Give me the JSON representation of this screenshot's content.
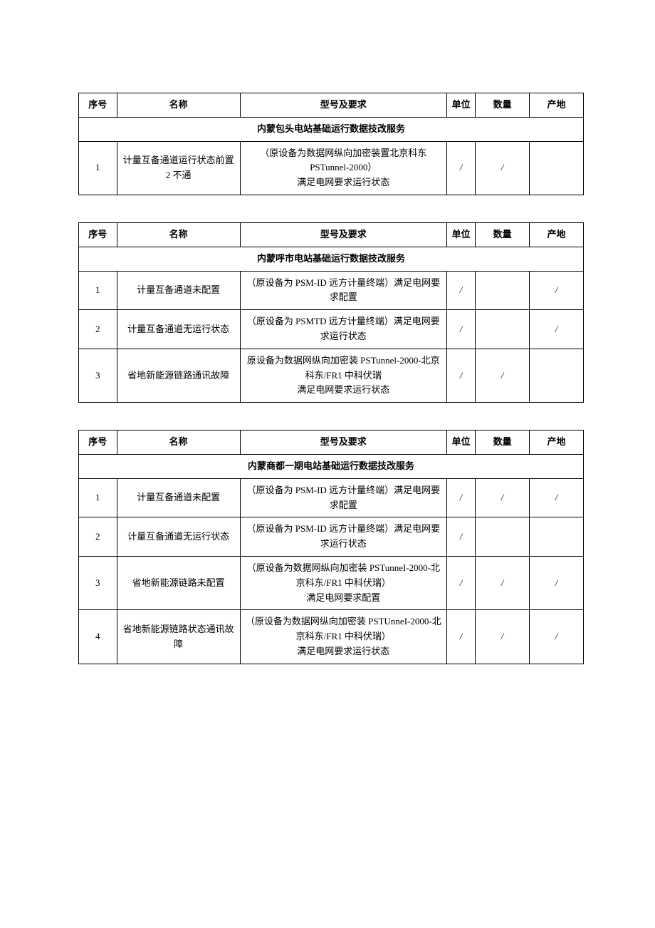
{
  "headers": {
    "seq": "序号",
    "name": "名称",
    "spec": "型号及要求",
    "unit": "单位",
    "qty": "数量",
    "origin": "产地"
  },
  "tables": [
    {
      "section_title": "内蒙包头电站基础运行数据技改服务",
      "rows": [
        {
          "seq": "1",
          "name": "计量互备通道运行状态前置 2 不通",
          "spec": "（原设备为数据网纵向加密装置北京科东 PSTunnel-2000）\n满足电网要求运行状态",
          "unit": "/",
          "qty": "/",
          "origin": ""
        }
      ]
    },
    {
      "section_title": "内蒙呼市电站基础运行数据技改服务",
      "rows": [
        {
          "seq": "1",
          "name": "计量互备通道未配置",
          "spec": "（原设备为 PSM-ID 远方计量终端）满足电网要求配置",
          "unit": "/",
          "qty": "",
          "origin": "/"
        },
        {
          "seq": "2",
          "name": "计量互备通道无运行状态",
          "spec": "（原设备为 PSMTD 远方计量终端）满足电网要求运行状态",
          "unit": "/",
          "qty": "",
          "origin": "/"
        },
        {
          "seq": "3",
          "name": "省地新能源链路通讯故障",
          "spec": "原设备为数据网纵向加密装 PSTunnel-2000-北京科东/FR1 中科伏瑞\n满足电网要求运行状态",
          "unit": "/",
          "qty": "/",
          "origin": ""
        }
      ]
    },
    {
      "section_title": "内蒙商都一期电站基础运行数据技改服务",
      "rows": [
        {
          "seq": "1",
          "name": "计量互备通道未配置",
          "spec": "（原设备为 PSM-ID 远方计量终端）满足电网要求配置",
          "unit": "/",
          "qty": "/",
          "origin": "/"
        },
        {
          "seq": "2",
          "name": "计量互备通道无运行状态",
          "spec": "（原设备为 PSM-ID 远方计量终端）满足电网要求运行状态",
          "unit": "/",
          "qty": "",
          "origin": ""
        },
        {
          "seq": "3",
          "name": "省地新能源链路未配置",
          "spec": "（原设备为数据网纵向加密装 PSTunneI-2000-北京科东/FR1 中科伏瑞）\n满足电网要求配置",
          "unit": "/",
          "qty": "/",
          "origin": "/"
        },
        {
          "seq": "4",
          "name": "省地新能源链路状态通讯故障",
          "spec": "（原设备为数据网纵向加密装 PSTUnneI-2000-北京科东/FR1 中科伏瑞）\n满足电网要求运行状态",
          "unit": "/",
          "qty": "/",
          "origin": "/"
        }
      ]
    }
  ]
}
